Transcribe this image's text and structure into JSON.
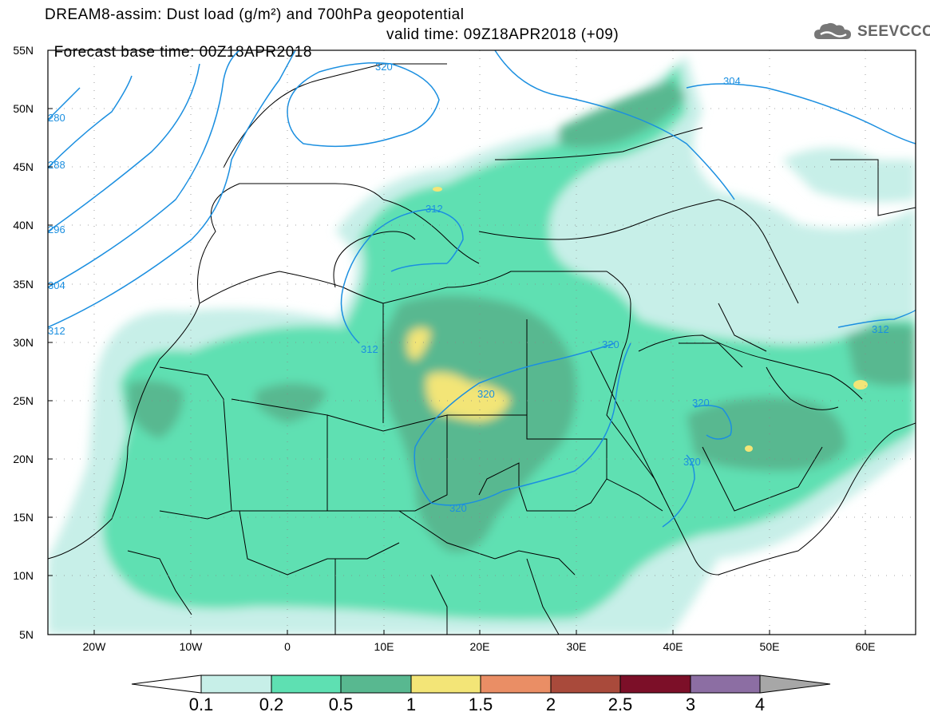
{
  "header": {
    "title_line1": "DREAM8-assim: Dust load (g/m²) and 700hPa geopotential",
    "base_time": "Forecast base time: 00Z18APR2018",
    "valid_time": "valid time: 09Z18APR2018 (+09)"
  },
  "logo": {
    "text": "SEEVCCC",
    "icon": "cloud-logo-icon"
  },
  "axes": {
    "lat_labels": [
      "55N",
      "50N",
      "45N",
      "40N",
      "35N",
      "30N",
      "25N",
      "20N",
      "15N",
      "10N",
      "5N"
    ],
    "lon_labels": [
      "20W",
      "10W",
      "0",
      "10E",
      "20E",
      "30E",
      "40E",
      "50E",
      "60E"
    ]
  },
  "contour_labels": [
    "320",
    "304",
    "312",
    "320",
    "312",
    "312",
    "320",
    "320",
    "320",
    "320",
    "296",
    "288",
    "280",
    "304",
    "312"
  ],
  "colorbar": {
    "labels": [
      "0.1",
      "0.2",
      "0.5",
      "1",
      "1.5",
      "2",
      "2.5",
      "3",
      "4"
    ],
    "colors": [
      "#c7efe8",
      "#5ee0b2",
      "#58b890",
      "#f3e577",
      "#ea8e65",
      "#a94a3b",
      "#7c0f28",
      "#8c6ea3",
      "#a7a7a7"
    ]
  },
  "colors": {
    "contour": "#1b8fe0",
    "border": "#000000"
  }
}
